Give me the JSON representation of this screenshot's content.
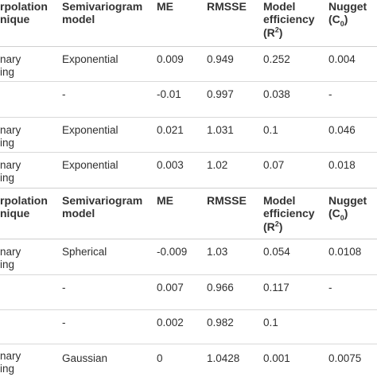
{
  "tables": [
    {
      "headers": {
        "technique": [
          "rpolation",
          "nique"
        ],
        "model": [
          "Semivariogram",
          "model"
        ],
        "me": "ME",
        "rmsse": "RMSSE",
        "efficiency": [
          "Model",
          "efficiency",
          "(R",
          "2",
          ")"
        ],
        "nugget": [
          "Nugget",
          "(C",
          "0",
          ")"
        ]
      },
      "rows": [
        {
          "technique": [
            "nary",
            "ing"
          ],
          "model": "Exponential",
          "me": "0.009",
          "rmsse": "0.949",
          "efficiency": "0.252",
          "nugget": "0.004"
        },
        {
          "technique": [
            "",
            ""
          ],
          "model": "-",
          "me": "-0.01",
          "rmsse": "0.997",
          "efficiency": "0.038",
          "nugget": "-"
        },
        {
          "technique": [
            "nary",
            "ing"
          ],
          "model": "Exponential",
          "me": "0.021",
          "rmsse": "1.031",
          "efficiency": "0.1",
          "nugget": "0.046"
        },
        {
          "technique": [
            "nary",
            "ing"
          ],
          "model": "Exponential",
          "me": "0.003",
          "rmsse": "1.02",
          "efficiency": "0.07",
          "nugget": "0.018"
        }
      ]
    },
    {
      "headers": {
        "technique": [
          "rpolation",
          "nique"
        ],
        "model": [
          "Semivariogram",
          "model"
        ],
        "me": "ME",
        "rmsse": "RMSSE",
        "efficiency": [
          "Model",
          "efficiency",
          "(R",
          "2",
          ")"
        ],
        "nugget": [
          "Nugget",
          "(C",
          "0",
          ")"
        ]
      },
      "rows": [
        {
          "technique": [
            "nary",
            "ing"
          ],
          "model": "Spherical",
          "me": "-0.009",
          "rmsse": "1.03",
          "efficiency": "0.054",
          "nugget": "0.0108"
        },
        {
          "technique": [
            "",
            ""
          ],
          "model": "-",
          "me": "0.007",
          "rmsse": "0.966",
          "efficiency": "0.117",
          "nugget": "-"
        },
        {
          "technique": [
            "",
            ""
          ],
          "model": "-",
          "me": "0.002",
          "rmsse": "0.982",
          "efficiency": "0.1",
          "nugget": ""
        },
        {
          "technique": [
            "nary",
            "ing"
          ],
          "model": "Gaussian",
          "me": "0",
          "rmsse": "1.0428",
          "efficiency": "0.001",
          "nugget": "0.0075"
        }
      ]
    }
  ]
}
